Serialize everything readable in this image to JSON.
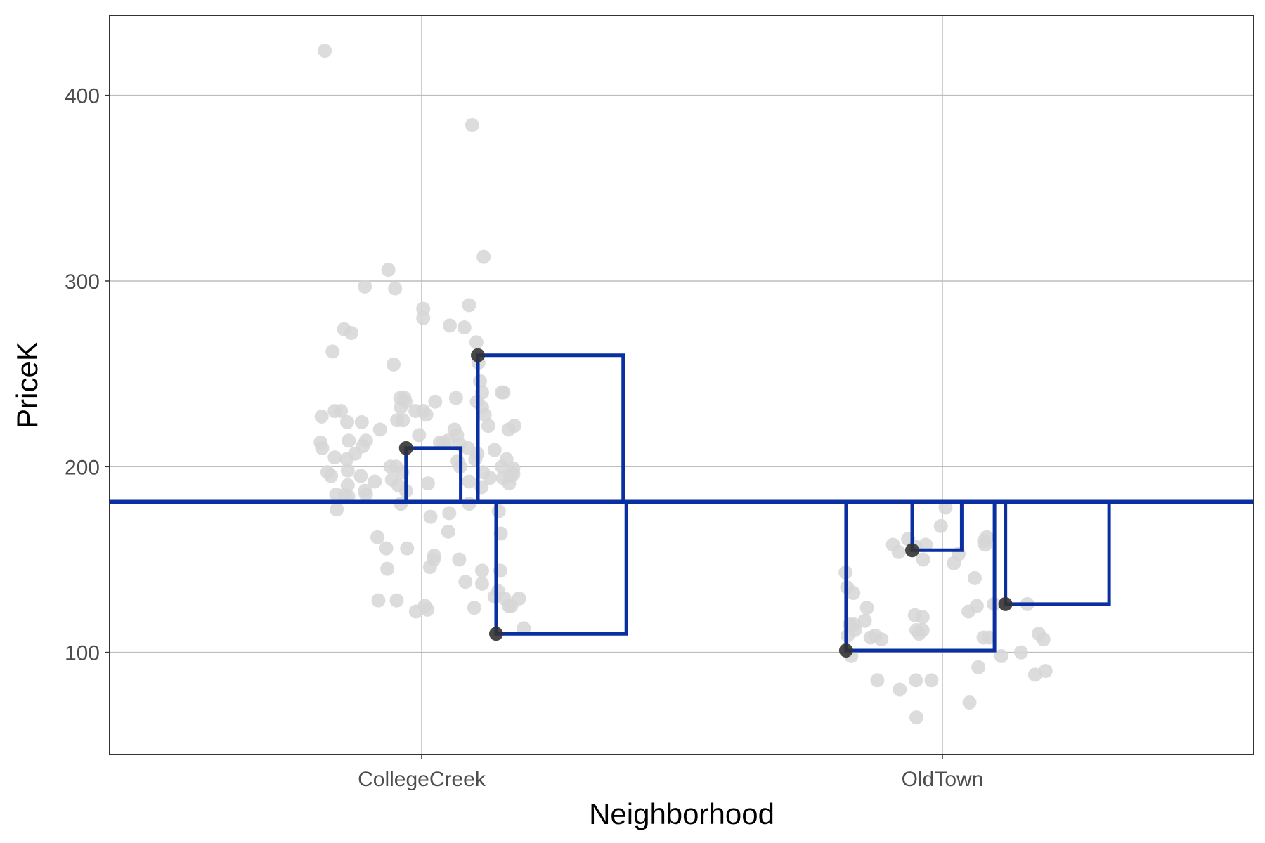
{
  "chart_data": {
    "type": "scatter",
    "title": "",
    "xlabel": "Neighborhood",
    "ylabel": "PriceK",
    "categories": [
      "CollegeCreek",
      "OldTown"
    ],
    "ylim": [
      45,
      443
    ],
    "yticks": [
      100,
      200,
      300,
      400
    ],
    "grid": true,
    "reference_line": {
      "y": 181,
      "color": "#0a2fa0"
    },
    "colors": {
      "points": "#d6d6d6",
      "highlight": "#333333",
      "line": "#0a2fa0",
      "grid": "#bdbdbd",
      "frame": "#333333"
    },
    "series": [
      {
        "category": "CollegeCreek",
        "points": [
          [
            -0.186,
            424
          ],
          [
            0.097,
            384
          ],
          [
            0.119,
            313
          ],
          [
            -0.064,
            306
          ],
          [
            -0.109,
            297
          ],
          [
            -0.051,
            296
          ],
          [
            0.003,
            285
          ],
          [
            0.091,
            287
          ],
          [
            0.003,
            280
          ],
          [
            -0.149,
            274
          ],
          [
            0.054,
            276
          ],
          [
            0.082,
            275
          ],
          [
            -0.135,
            272
          ],
          [
            0.105,
            267
          ],
          [
            -0.171,
            262
          ],
          [
            0.109,
            256
          ],
          [
            -0.054,
            255
          ],
          [
            0.112,
            246
          ],
          [
            0.154,
            240
          ],
          [
            0.157,
            240
          ],
          [
            0.116,
            240
          ],
          [
            -0.033,
            237
          ],
          [
            -0.031,
            235
          ],
          [
            -0.041,
            237
          ],
          [
            0.026,
            235
          ],
          [
            0.066,
            237
          ],
          [
            0.106,
            235
          ],
          [
            0.116,
            232
          ],
          [
            -0.04,
            232
          ],
          [
            -0.012,
            230
          ],
          [
            0.003,
            230
          ],
          [
            -0.167,
            230
          ],
          [
            -0.155,
            230
          ],
          [
            0.121,
            228
          ],
          [
            0.009,
            228
          ],
          [
            -0.192,
            227
          ],
          [
            -0.143,
            224
          ],
          [
            -0.047,
            225
          ],
          [
            -0.036,
            225
          ],
          [
            -0.115,
            224
          ],
          [
            0.178,
            222
          ],
          [
            0.167,
            220
          ],
          [
            -0.08,
            220
          ],
          [
            0.063,
            220
          ],
          [
            0.128,
            222
          ],
          [
            -0.005,
            217
          ],
          [
            0.068,
            217
          ],
          [
            0.035,
            213
          ],
          [
            0.042,
            213
          ],
          [
            0.05,
            214
          ],
          [
            0.073,
            212
          ],
          [
            -0.194,
            213
          ],
          [
            -0.107,
            214
          ],
          [
            -0.14,
            214
          ],
          [
            -0.113,
            211
          ],
          [
            -0.191,
            210
          ],
          [
            0.089,
            210
          ],
          [
            0.107,
            207
          ],
          [
            0.14,
            209
          ],
          [
            -0.128,
            207
          ],
          [
            -0.167,
            205
          ],
          [
            -0.144,
            204
          ],
          [
            0.069,
            203
          ],
          [
            0.074,
            200
          ],
          [
            0.103,
            204
          ],
          [
            0.163,
            204
          ],
          [
            0.154,
            200
          ],
          [
            0.118,
            197
          ],
          [
            -0.06,
            200
          ],
          [
            -0.049,
            200
          ],
          [
            -0.037,
            197
          ],
          [
            -0.142,
            198
          ],
          [
            -0.181,
            197
          ],
          [
            -0.174,
            195
          ],
          [
            0.176,
            199
          ],
          [
            0.176,
            196
          ],
          [
            0.156,
            194
          ],
          [
            0.131,
            194
          ],
          [
            0.17,
            195
          ],
          [
            -0.117,
            195
          ],
          [
            -0.09,
            192
          ],
          [
            -0.057,
            193
          ],
          [
            0.012,
            191
          ],
          [
            0.091,
            192
          ],
          [
            0.115,
            189
          ],
          [
            0.168,
            191
          ],
          [
            -0.045,
            190
          ],
          [
            -0.109,
            187
          ],
          [
            -0.142,
            190
          ],
          [
            -0.03,
            187
          ],
          [
            -0.164,
            185
          ],
          [
            -0.147,
            185
          ],
          [
            -0.141,
            184
          ],
          [
            -0.107,
            185
          ],
          [
            -0.04,
            180
          ],
          [
            0.091,
            180
          ],
          [
            0.148,
            176
          ],
          [
            0.053,
            175
          ],
          [
            -0.163,
            177
          ],
          [
            0.017,
            173
          ],
          [
            0.051,
            165
          ],
          [
            0.152,
            164
          ],
          [
            -0.085,
            162
          ],
          [
            -0.068,
            156
          ],
          [
            -0.028,
            156
          ],
          [
            0.024,
            152
          ],
          [
            0.023,
            150
          ],
          [
            0.072,
            150
          ],
          [
            0.016,
            146
          ],
          [
            -0.066,
            145
          ],
          [
            0.116,
            144
          ],
          [
            0.151,
            144
          ],
          [
            0.116,
            137
          ],
          [
            0.084,
            138
          ],
          [
            0.147,
            133
          ],
          [
            0.14,
            130
          ],
          [
            0.159,
            129
          ],
          [
            0.187,
            129
          ],
          [
            -0.083,
            128
          ],
          [
            -0.048,
            128
          ],
          [
            0.167,
            125
          ],
          [
            0.006,
            125
          ],
          [
            0.011,
            123
          ],
          [
            0.172,
            125
          ],
          [
            -0.011,
            122
          ],
          [
            0.101,
            124
          ],
          [
            0.196,
            113
          ]
        ],
        "highlighted": [
          [
            -0.03,
            210
          ],
          [
            0.108,
            260
          ],
          [
            0.143,
            110
          ]
        ]
      },
      {
        "category": "OldTown",
        "points": [
          [
            0.006,
            178
          ],
          [
            -0.003,
            168
          ],
          [
            0.031,
            153
          ],
          [
            -0.032,
            158
          ],
          [
            -0.095,
            158
          ],
          [
            -0.084,
            154
          ],
          [
            -0.066,
            161
          ],
          [
            -0.052,
            157
          ],
          [
            -0.037,
            150
          ],
          [
            0.08,
            160
          ],
          [
            0.085,
            162
          ],
          [
            0.082,
            158
          ],
          [
            0.022,
            148
          ],
          [
            -0.186,
            143
          ],
          [
            -0.183,
            135
          ],
          [
            -0.171,
            132
          ],
          [
            0.062,
            140
          ],
          [
            -0.145,
            124
          ],
          [
            -0.17,
            115
          ],
          [
            -0.182,
            109
          ],
          [
            -0.178,
            115
          ],
          [
            -0.168,
            112
          ],
          [
            -0.149,
            117
          ],
          [
            -0.138,
            108
          ],
          [
            -0.129,
            109
          ],
          [
            -0.117,
            107
          ],
          [
            -0.053,
            120
          ],
          [
            -0.038,
            119
          ],
          [
            0.05,
            122
          ],
          [
            0.066,
            125
          ],
          [
            0.099,
            126
          ],
          [
            0.163,
            126
          ],
          [
            -0.038,
            112
          ],
          [
            -0.045,
            110
          ],
          [
            -0.05,
            112
          ],
          [
            0.079,
            108
          ],
          [
            0.09,
            108
          ],
          [
            0.185,
            110
          ],
          [
            0.194,
            107
          ],
          [
            0.151,
            100
          ],
          [
            0.113,
            98
          ],
          [
            -0.175,
            98
          ],
          [
            0.069,
            92
          ],
          [
            0.198,
            90
          ],
          [
            0.178,
            88
          ],
          [
            -0.125,
            85
          ],
          [
            -0.051,
            85
          ],
          [
            -0.021,
            85
          ],
          [
            -0.082,
            80
          ],
          [
            0.052,
            73
          ],
          [
            -0.05,
            65
          ]
        ],
        "highlighted": [
          [
            -0.185,
            101
          ],
          [
            -0.058,
            155
          ],
          [
            0.121,
            126
          ]
        ]
      }
    ],
    "residual_boxes": [
      {
        "category": "CollegeCreek",
        "x0": -0.03,
        "x1": 0.075,
        "y": 210
      },
      {
        "category": "CollegeCreek",
        "x0": 0.108,
        "x1": 0.387,
        "y": 260
      },
      {
        "category": "CollegeCreek",
        "x0": 0.143,
        "x1": 0.393,
        "y": 110
      },
      {
        "category": "OldTown",
        "x0": -0.185,
        "x1": 0.1,
        "y": 101
      },
      {
        "category": "OldTown",
        "x0": -0.058,
        "x1": 0.037,
        "y": 155
      },
      {
        "category": "OldTown",
        "x0": 0.121,
        "x1": 0.32,
        "y": 126
      }
    ]
  }
}
